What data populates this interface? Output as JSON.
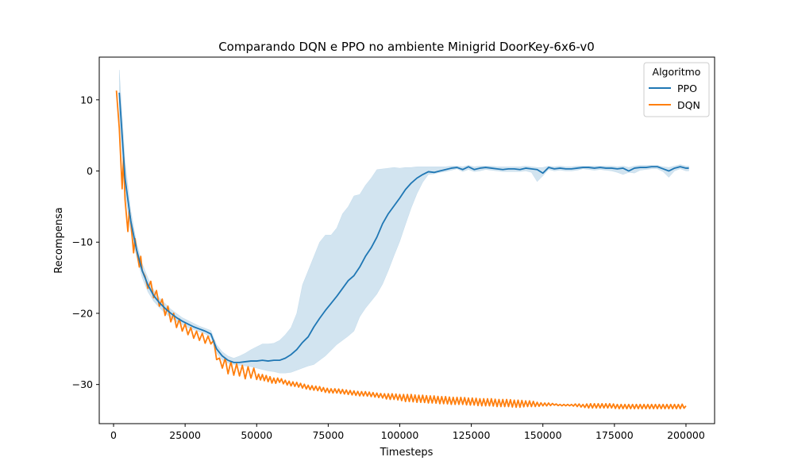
{
  "chart_data": {
    "type": "line",
    "title": "Comparando DQN e PPO no ambiente Minigrid DoorKey-6x6-v0",
    "xlabel": "Timesteps",
    "ylabel": "Recompensa",
    "xlim": [
      -5000,
      210000
    ],
    "ylim": [
      -35.5,
      16.0
    ],
    "x_ticks": [
      0,
      25000,
      50000,
      75000,
      100000,
      125000,
      150000,
      175000,
      200000
    ],
    "y_ticks": [
      10,
      0,
      -10,
      -20,
      -30
    ],
    "grid": false,
    "legend": {
      "title": "Algoritmo",
      "placement": "top-right"
    },
    "series": [
      {
        "name": "PPO",
        "color": "#1f77b4",
        "band_color": "#1f77b4",
        "x": [
          2000,
          4000,
          6000,
          8000,
          10000,
          12000,
          14000,
          16000,
          18000,
          20000,
          22000,
          24000,
          26000,
          28000,
          30000,
          32000,
          34000,
          36000,
          38000,
          40000,
          42000,
          44000,
          46000,
          48000,
          50000,
          52000,
          54000,
          56000,
          58000,
          60000,
          62000,
          64000,
          66000,
          68000,
          70000,
          72000,
          74000,
          76000,
          78000,
          80000,
          82000,
          84000,
          86000,
          88000,
          90000,
          92000,
          94000,
          96000,
          98000,
          100000,
          102000,
          104000,
          106000,
          108000,
          110000,
          112000,
          114000,
          116000,
          118000,
          120000,
          122000,
          124000,
          126000,
          128000,
          130000,
          132000,
          134000,
          136000,
          138000,
          140000,
          142000,
          144000,
          146000,
          148000,
          150000,
          152000,
          154000,
          156000,
          158000,
          160000,
          162000,
          164000,
          166000,
          168000,
          170000,
          172000,
          174000,
          176000,
          178000,
          180000,
          182000,
          184000,
          186000,
          188000,
          190000,
          192000,
          194000,
          196000,
          198000,
          200000,
          201000
        ],
        "y": [
          11.0,
          -1.0,
          -7.0,
          -11.0,
          -14.0,
          -16.0,
          -17.5,
          -18.5,
          -19.3,
          -20.0,
          -20.6,
          -21.1,
          -21.5,
          -21.9,
          -22.2,
          -22.5,
          -22.9,
          -25.0,
          -26.0,
          -26.6,
          -26.9,
          -26.9,
          -26.8,
          -26.7,
          -26.7,
          -26.6,
          -26.7,
          -26.6,
          -26.6,
          -26.3,
          -25.8,
          -25.1,
          -24.1,
          -23.3,
          -21.9,
          -20.7,
          -19.6,
          -18.6,
          -17.6,
          -16.5,
          -15.4,
          -14.7,
          -13.5,
          -12.0,
          -10.8,
          -9.3,
          -7.4,
          -6.0,
          -4.9,
          -3.8,
          -2.6,
          -1.7,
          -1.0,
          -0.5,
          -0.1,
          -0.2,
          0.0,
          0.2,
          0.4,
          0.5,
          0.2,
          0.6,
          0.2,
          0.4,
          0.5,
          0.4,
          0.3,
          0.2,
          0.3,
          0.3,
          0.2,
          0.4,
          0.3,
          0.2,
          -0.3,
          0.5,
          0.3,
          0.4,
          0.3,
          0.3,
          0.4,
          0.5,
          0.5,
          0.4,
          0.5,
          0.4,
          0.4,
          0.3,
          0.4,
          0.0,
          0.4,
          0.5,
          0.5,
          0.6,
          0.6,
          0.3,
          0.0,
          0.4,
          0.6,
          0.4,
          0.4
        ],
        "ci_lower": [
          8.0,
          -3.0,
          -8.5,
          -12.0,
          -15.0,
          -17.0,
          -18.3,
          -19.2,
          -20.0,
          -20.6,
          -21.2,
          -21.6,
          -22.0,
          -22.3,
          -22.6,
          -22.9,
          -23.4,
          -25.6,
          -26.6,
          -27.0,
          -27.2,
          -27.3,
          -27.4,
          -27.5,
          -27.7,
          -27.9,
          -28.1,
          -28.2,
          -28.4,
          -28.4,
          -28.3,
          -28.0,
          -27.7,
          -27.4,
          -27.2,
          -26.6,
          -26.0,
          -25.2,
          -24.4,
          -23.8,
          -23.2,
          -22.5,
          -20.5,
          -19.3,
          -18.3,
          -17.3,
          -15.9,
          -14.0,
          -11.9,
          -9.9,
          -7.5,
          -5.2,
          -3.2,
          -1.6,
          -0.5,
          -0.4,
          -0.2,
          -0.1,
          0.1,
          0.3,
          -0.1,
          0.2,
          -0.1,
          0.0,
          0.2,
          0.1,
          0.0,
          -0.1,
          -0.1,
          -0.1,
          -0.1,
          0.0,
          -0.2,
          -1.5,
          -0.7,
          0.2,
          0.0,
          0.1,
          0.0,
          0.0,
          0.1,
          0.3,
          0.2,
          0.1,
          0.2,
          0.1,
          0.0,
          -0.2,
          -0.5,
          -0.2,
          -0.3,
          0.1,
          0.2,
          0.3,
          0.3,
          -0.1,
          -0.9,
          0.0,
          0.3,
          0.0,
          0.0
        ],
        "ci_upper": [
          14.2,
          1.5,
          -5.5,
          -10.0,
          -13.0,
          -15.0,
          -16.7,
          -17.8,
          -18.6,
          -19.4,
          -20.0,
          -20.6,
          -21.0,
          -21.4,
          -21.8,
          -22.1,
          -22.4,
          -24.4,
          -25.4,
          -26.0,
          -26.3,
          -26.0,
          -25.6,
          -25.1,
          -24.7,
          -24.3,
          -24.3,
          -24.2,
          -23.8,
          -23.0,
          -22.0,
          -20.0,
          -16.0,
          -14.0,
          -12.0,
          -10.0,
          -9.0,
          -9.0,
          -8.0,
          -6.0,
          -5.0,
          -3.5,
          -3.3,
          -2.0,
          -1.0,
          0.2,
          0.3,
          0.4,
          0.5,
          0.4,
          0.5,
          0.5,
          0.6,
          0.6,
          0.6,
          0.6,
          0.6,
          0.6,
          0.7,
          0.7,
          0.6,
          0.8,
          0.6,
          0.7,
          0.7,
          0.7,
          0.6,
          0.6,
          0.6,
          0.6,
          0.6,
          0.7,
          0.6,
          0.5,
          0.5,
          0.7,
          0.6,
          0.7,
          0.6,
          0.6,
          0.7,
          0.7,
          0.7,
          0.7,
          0.7,
          0.7,
          0.7,
          0.6,
          0.7,
          0.5,
          0.7,
          0.8,
          0.8,
          0.8,
          0.8,
          0.6,
          0.5,
          0.7,
          0.9,
          0.7,
          0.7
        ]
      },
      {
        "name": "DQN",
        "color": "#ff7f0e",
        "x": [
          1000,
          2000,
          3000,
          3500,
          4000,
          5000,
          5500,
          6000,
          7000,
          7500,
          8000,
          9000,
          9500,
          10000,
          11000,
          12000,
          13000,
          14000,
          15000,
          16000,
          17000,
          18000,
          19000,
          20000,
          21000,
          22000,
          23000,
          24000,
          25000,
          26000,
          27000,
          28000,
          29000,
          30000,
          31000,
          32000,
          33000,
          34000,
          35000,
          36000,
          37000,
          38000,
          39000,
          40000,
          41000,
          42000,
          43000,
          44000,
          45000,
          46000,
          47000,
          48000,
          49000,
          50000,
          52000,
          54000,
          56000,
          58000,
          60000,
          62000,
          64000,
          66000,
          68000,
          70000,
          72000,
          74000,
          76000,
          78000,
          80000,
          82000,
          84000,
          86000,
          88000,
          90000,
          92000,
          94000,
          96000,
          98000,
          100000,
          102000,
          104000,
          106000,
          108000,
          110000,
          112000,
          114000,
          116000,
          118000,
          120000,
          122000,
          124000,
          126000,
          128000,
          130000,
          132000,
          134000,
          136000,
          138000,
          140000,
          142000,
          144000,
          146000,
          148000,
          150000,
          152000,
          154000,
          156000,
          158000,
          160000,
          162000,
          164000,
          166000,
          168000,
          170000,
          172000,
          174000,
          176000,
          178000,
          180000,
          182000,
          184000,
          186000,
          188000,
          190000,
          192000,
          194000,
          196000,
          198000,
          200000
        ],
        "y": [
          11.3,
          6.0,
          -2.5,
          2.0,
          -4.0,
          -8.5,
          -5.5,
          -7.0,
          -11.5,
          -9.5,
          -11.0,
          -13.5,
          -12.0,
          -14.0,
          -14.8,
          -16.5,
          -15.5,
          -17.8,
          -16.8,
          -19.0,
          -18.0,
          -20.3,
          -19.0,
          -21.2,
          -20.0,
          -22.0,
          -20.8,
          -22.5,
          -21.5,
          -23.0,
          -22.0,
          -23.5,
          -22.5,
          -23.8,
          -22.8,
          -24.2,
          -23.2,
          -24.3,
          -23.8,
          -26.0,
          -26.8,
          -27.2,
          -26.8,
          -28.0,
          -27.3,
          -28.2,
          -27.6,
          -28.3,
          -27.8,
          -28.7,
          -28.0,
          -28.6,
          -28.2,
          -28.9,
          -29.0,
          -29.2,
          -29.5,
          -29.4,
          -29.7,
          -29.9,
          -30.0,
          -30.2,
          -30.4,
          -30.5,
          -30.6,
          -30.8,
          -30.9,
          -30.9,
          -31.0,
          -31.1,
          -31.2,
          -31.3,
          -31.3,
          -31.4,
          -31.5,
          -31.6,
          -31.7,
          -31.7,
          -31.8,
          -31.9,
          -31.9,
          -32.0,
          -32.0,
          -32.1,
          -32.1,
          -32.2,
          -32.2,
          -32.3,
          -32.3,
          -32.3,
          -32.4,
          -32.4,
          -32.5,
          -32.5,
          -32.5,
          -32.6,
          -32.6,
          -32.6,
          -32.7,
          -32.7,
          -32.7,
          -32.7,
          -32.8,
          -32.8,
          -32.8,
          -32.8,
          -32.9,
          -32.9,
          -32.9,
          -32.9,
          -33.0,
          -33.0,
          -33.0,
          -33.0,
          -33.0,
          -33.0,
          -33.1,
          -33.1,
          -33.1,
          -33.1,
          -33.1,
          -33.1,
          -33.1,
          -33.1,
          -33.1,
          -33.1,
          -33.1,
          -33.1,
          -33.0
        ],
        "jitter_amplitude": [
          0,
          0,
          0,
          0,
          0,
          0,
          0,
          0,
          0,
          0,
          0,
          0,
          0,
          0,
          0,
          0,
          0,
          0,
          0,
          0,
          0,
          0,
          0,
          0,
          0,
          0,
          0,
          0,
          0,
          0,
          0,
          0,
          0,
          0,
          0,
          0,
          0,
          0,
          0,
          0.5,
          0.5,
          0.5,
          0.5,
          0.5,
          0.5,
          0.5,
          0.5,
          0.5,
          0.5,
          0.5,
          0.5,
          0.5,
          0.5,
          0.4,
          0.4,
          0.4,
          0.4,
          0.3,
          0.3,
          0.3,
          0.3,
          0.3,
          0.3,
          0.3,
          0.3,
          0.3,
          0.3,
          0.3,
          0.3,
          0.3,
          0.3,
          0.3,
          0.3,
          0.3,
          0.3,
          0.3,
          0.4,
          0.4,
          0.4,
          0.5,
          0.5,
          0.5,
          0.5,
          0.5,
          0.5,
          0.5,
          0.5,
          0.5,
          0.5,
          0.5,
          0.5,
          0.5,
          0.5,
          0.5,
          0.5,
          0.5,
          0.5,
          0.5,
          0.5,
          0.5,
          0.4,
          0.4,
          0.3,
          0.2,
          0.2,
          0.1,
          0.1,
          0.1,
          0.1,
          0.2,
          0.2,
          0.3,
          0.3,
          0.3,
          0.3,
          0.3,
          0.3,
          0.3,
          0.3,
          0.3,
          0.3,
          0.3,
          0.3,
          0.3,
          0.3,
          0.3,
          0.3,
          0.3,
          0.3
        ]
      }
    ]
  }
}
